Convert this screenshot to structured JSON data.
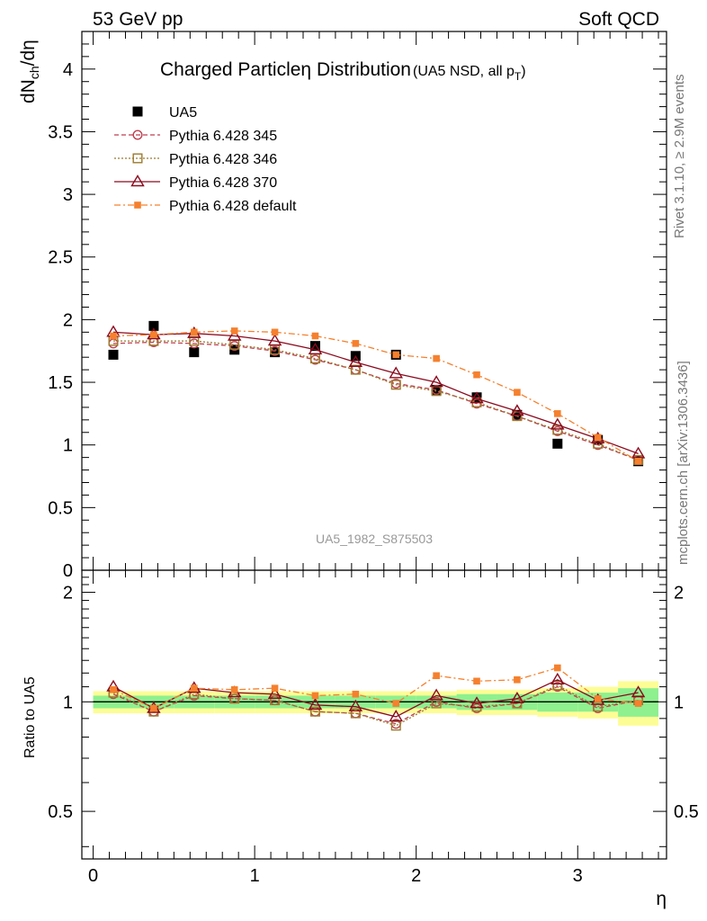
{
  "header": {
    "left": "53 GeV pp",
    "right": "Soft QCD"
  },
  "title": {
    "main_a": "Charged Particle",
    "main_eta": "η",
    "main_b": " Distribution",
    "sub": "(UA5 NSD, all p",
    "sub_t": "T",
    "sub_close": ")"
  },
  "side": {
    "rivet": "Rivet 3.1.10, ≥ 2.9M events",
    "mcplots": "mcplots.cern.ch [arXiv:1306.3436]"
  },
  "watermark": "UA5_1982_S875503",
  "colors": {
    "data": "#000000",
    "p345": "#bf3f50",
    "p346": "#9b7b2e",
    "p370": "#8b0a1e",
    "pdef": "#f5802e",
    "band_inner": "#8ef08e",
    "band_outer": "#fdfd96"
  },
  "chart_data": [
    {
      "type": "line",
      "title": "Charged Particle η Distribution (UA5 NSD, all pT)",
      "xlabel": "η",
      "ylabel": "dN_ch/dη",
      "ylabel_parts": {
        "main": "dN",
        "sub": "ch",
        "tail": "/dη"
      },
      "xlim": [
        -0.07,
        3.55
      ],
      "ylim": [
        0,
        4.3
      ],
      "yticks": [
        "0",
        "0.5",
        "1",
        "1.5",
        "2",
        "2.5",
        "3",
        "3.5",
        "4"
      ],
      "ytick_values": [
        0,
        0.5,
        1,
        1.5,
        2,
        2.5,
        3,
        3.5,
        4
      ],
      "grid": false,
      "legend_position": "top-left",
      "x": [
        0.125,
        0.375,
        0.625,
        0.875,
        1.125,
        1.375,
        1.625,
        1.875,
        2.125,
        2.375,
        2.625,
        2.875,
        3.125,
        3.375
      ],
      "series": [
        {
          "name": "UA5",
          "style": "data",
          "values": [
            1.72,
            1.95,
            1.74,
            1.76,
            1.74,
            1.79,
            1.71,
            1.72,
            1.44,
            1.38,
            1.24,
            1.01,
            1.04,
            0.87
          ]
        },
        {
          "name": "Pythia 6.428 345",
          "style": "p345",
          "values": [
            1.81,
            1.82,
            1.81,
            1.79,
            1.75,
            1.68,
            1.6,
            1.49,
            1.44,
            1.33,
            1.23,
            1.11,
            1.0,
            0.88
          ]
        },
        {
          "name": "Pythia 6.428 346",
          "style": "p346",
          "values": [
            1.83,
            1.83,
            1.83,
            1.8,
            1.76,
            1.69,
            1.6,
            1.48,
            1.43,
            1.34,
            1.23,
            1.12,
            1.01,
            0.88
          ]
        },
        {
          "name": "Pythia 6.428 370",
          "style": "p370",
          "values": [
            1.9,
            1.88,
            1.89,
            1.87,
            1.83,
            1.76,
            1.66,
            1.57,
            1.5,
            1.37,
            1.27,
            1.16,
            1.05,
            0.93
          ]
        },
        {
          "name": "Pythia 6.428 default",
          "style": "pdef",
          "values": [
            1.87,
            1.88,
            1.9,
            1.91,
            1.9,
            1.87,
            1.81,
            1.72,
            1.69,
            1.56,
            1.42,
            1.25,
            1.06,
            0.87
          ]
        }
      ]
    },
    {
      "type": "line",
      "xlabel": "η",
      "ylabel": "Ratio to UA5",
      "xlim": [
        -0.07,
        3.55
      ],
      "ylim": [
        0.37,
        2.3
      ],
      "xticks": [
        "0",
        "1",
        "2",
        "3"
      ],
      "xtick_values": [
        0,
        1,
        2,
        3
      ],
      "yticks": [
        "0.5",
        "1",
        "2"
      ],
      "ytick_values": [
        0.5,
        1,
        2
      ],
      "log_y": true,
      "band_inner": [
        0.04,
        0.04,
        0.04,
        0.04,
        0.04,
        0.04,
        0.04,
        0.04,
        0.04,
        0.05,
        0.05,
        0.06,
        0.06,
        0.09
      ],
      "band_outer": [
        0.07,
        0.07,
        0.07,
        0.07,
        0.07,
        0.07,
        0.07,
        0.07,
        0.07,
        0.08,
        0.08,
        0.09,
        0.1,
        0.14
      ],
      "x": [
        0.125,
        0.375,
        0.625,
        0.875,
        1.125,
        1.375,
        1.625,
        1.875,
        2.125,
        2.375,
        2.625,
        2.875,
        3.125,
        3.375
      ],
      "series": [
        {
          "name": "Pythia 6.428 345",
          "style": "p345",
          "values": [
            1.05,
            0.94,
            1.04,
            1.02,
            1.01,
            0.94,
            0.93,
            0.87,
            1.0,
            0.96,
            0.99,
            1.1,
            0.96,
            1.01
          ]
        },
        {
          "name": "Pythia 6.428 346",
          "style": "p346",
          "values": [
            1.06,
            0.94,
            1.05,
            1.02,
            1.01,
            0.94,
            0.93,
            0.86,
            0.99,
            0.97,
            0.99,
            1.11,
            0.97,
            1.01
          ]
        },
        {
          "name": "Pythia 6.428 370",
          "style": "p370",
          "values": [
            1.1,
            0.96,
            1.09,
            1.06,
            1.05,
            0.98,
            0.97,
            0.91,
            1.04,
            0.99,
            1.02,
            1.15,
            1.01,
            1.06
          ]
        },
        {
          "name": "Pythia 6.428 default",
          "style": "pdef",
          "values": [
            1.08,
            0.96,
            1.09,
            1.08,
            1.09,
            1.04,
            1.05,
            0.99,
            1.18,
            1.14,
            1.15,
            1.24,
            1.02,
            0.99
          ]
        }
      ]
    }
  ]
}
